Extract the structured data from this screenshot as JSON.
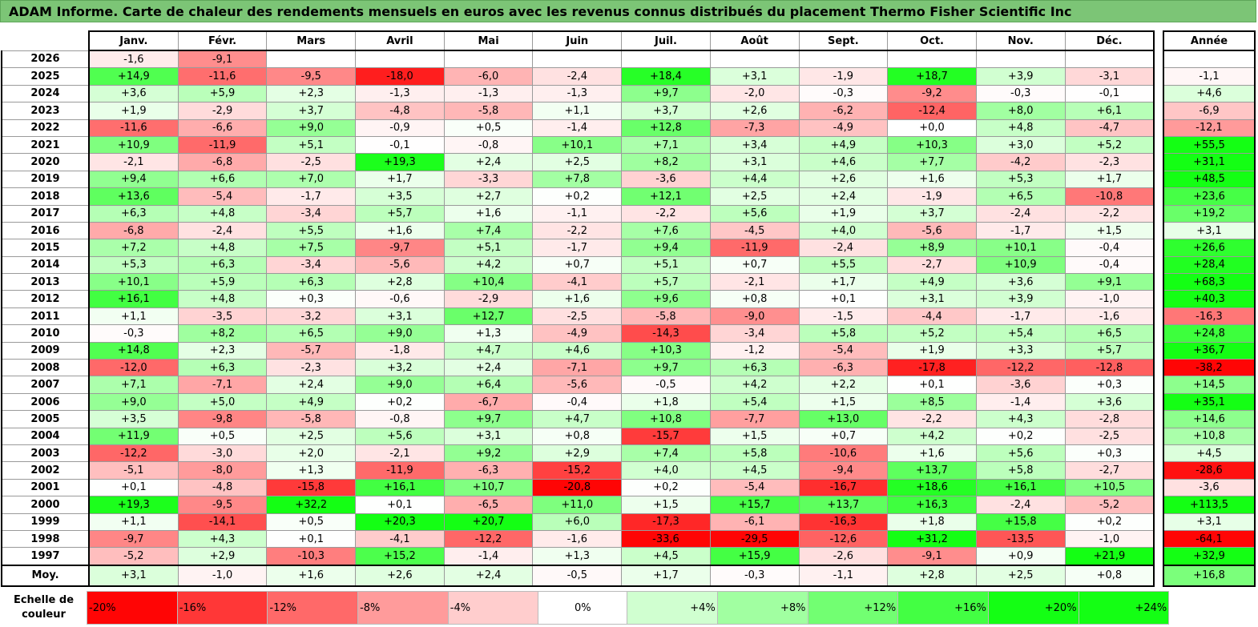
{
  "title": "ADAM Informe. Carte de chaleur des rendements mensuels en euros avec les revenus connus distribués du placement Thermo Fisher Scientific Inc",
  "chart_data": {
    "type": "heatmap",
    "columns": [
      "Janv.",
      "Févr.",
      "Mars",
      "Avril",
      "Mai",
      "Juin",
      "Juil.",
      "Août",
      "Sept.",
      "Oct.",
      "Nov.",
      "Déc."
    ],
    "year_header": "Année",
    "rows": [
      {
        "year": "2026",
        "months": [
          "-1,6",
          "-9,1",
          "",
          "",
          "",
          "",
          "",
          "",
          "",
          "",
          "",
          ""
        ],
        "total": ""
      },
      {
        "year": "2025",
        "months": [
          "+14,9",
          "-11,6",
          "-9,5",
          "-18,0",
          "-6,0",
          "-2,4",
          "+18,4",
          "+3,1",
          "-1,9",
          "+18,7",
          "+3,9",
          "-3,1"
        ],
        "total": "-1,1"
      },
      {
        "year": "2024",
        "months": [
          "+3,6",
          "+5,9",
          "+2,3",
          "-1,3",
          "-1,3",
          "-1,3",
          "+9,7",
          "-2,0",
          "-0,3",
          "-9,2",
          "-0,3",
          "-0,1"
        ],
        "total": "+4,6"
      },
      {
        "year": "2023",
        "months": [
          "+1,9",
          "-2,9",
          "+3,7",
          "-4,8",
          "-5,8",
          "+1,1",
          "+3,7",
          "+2,6",
          "-6,2",
          "-12,4",
          "+8,0",
          "+6,1"
        ],
        "total": "-6,9"
      },
      {
        "year": "2022",
        "months": [
          "-11,6",
          "-6,6",
          "+9,0",
          "-0,9",
          "+0,5",
          "-1,4",
          "+12,8",
          "-7,3",
          "-4,9",
          "+0,0",
          "+4,8",
          "-4,7"
        ],
        "total": "-12,1"
      },
      {
        "year": "2021",
        "months": [
          "+10,9",
          "-11,9",
          "+5,1",
          "-0,1",
          "-0,8",
          "+10,1",
          "+7,1",
          "+3,4",
          "+4,9",
          "+10,3",
          "+3,0",
          "+5,2"
        ],
        "total": "+55,5"
      },
      {
        "year": "2020",
        "months": [
          "-2,1",
          "-6,8",
          "-2,5",
          "+19,3",
          "+2,4",
          "+2,5",
          "+8,2",
          "+3,1",
          "+4,6",
          "+7,7",
          "-4,2",
          "-2,3"
        ],
        "total": "+31,1"
      },
      {
        "year": "2019",
        "months": [
          "+9,4",
          "+6,6",
          "+7,0",
          "+1,7",
          "-3,3",
          "+7,8",
          "-3,6",
          "+4,4",
          "+2,6",
          "+1,6",
          "+5,3",
          "+1,7"
        ],
        "total": "+48,5"
      },
      {
        "year": "2018",
        "months": [
          "+13,6",
          "-5,4",
          "-1,7",
          "+3,5",
          "+2,7",
          "+0,2",
          "+12,1",
          "+2,5",
          "+2,4",
          "-1,9",
          "+6,5",
          "-10,8"
        ],
        "total": "+23,6"
      },
      {
        "year": "2017",
        "months": [
          "+6,3",
          "+4,8",
          "-3,4",
          "+5,7",
          "+1,6",
          "-1,1",
          "-2,2",
          "+5,6",
          "+1,9",
          "+3,7",
          "-2,4",
          "-2,2"
        ],
        "total": "+19,2"
      },
      {
        "year": "2016",
        "months": [
          "-6,8",
          "-2,4",
          "+5,5",
          "+1,6",
          "+7,4",
          "-2,2",
          "+7,6",
          "-4,5",
          "+4,0",
          "-5,6",
          "-1,7",
          "+1,5"
        ],
        "total": "+3,1"
      },
      {
        "year": "2015",
        "months": [
          "+7,2",
          "+4,8",
          "+7,5",
          "-9,7",
          "+5,1",
          "-1,7",
          "+9,4",
          "-11,9",
          "-2,4",
          "+8,9",
          "+10,1",
          "-0,4"
        ],
        "total": "+26,6"
      },
      {
        "year": "2014",
        "months": [
          "+5,3",
          "+6,3",
          "-3,4",
          "-5,6",
          "+4,2",
          "+0,7",
          "+5,1",
          "+0,7",
          "+5,5",
          "-2,7",
          "+10,9",
          "-0,4"
        ],
        "total": "+28,4"
      },
      {
        "year": "2013",
        "months": [
          "+10,1",
          "+5,9",
          "+6,3",
          "+2,8",
          "+10,4",
          "-4,1",
          "+5,7",
          "-2,1",
          "+1,7",
          "+4,9",
          "+3,6",
          "+9,1"
        ],
        "total": "+68,3"
      },
      {
        "year": "2012",
        "months": [
          "+16,1",
          "+4,8",
          "+0,3",
          "-0,6",
          "-2,9",
          "+1,6",
          "+9,6",
          "+0,8",
          "+0,1",
          "+3,1",
          "+3,9",
          "-1,0"
        ],
        "total": "+40,3"
      },
      {
        "year": "2011",
        "months": [
          "+1,1",
          "-3,5",
          "-3,2",
          "+3,1",
          "+12,7",
          "-2,5",
          "-5,8",
          "-9,0",
          "-1,5",
          "-4,4",
          "-1,7",
          "-1,6"
        ],
        "total": "-16,3"
      },
      {
        "year": "2010",
        "months": [
          "-0,3",
          "+8,2",
          "+6,5",
          "+9,0",
          "+1,3",
          "-4,9",
          "-14,3",
          "-3,4",
          "+5,8",
          "+5,2",
          "+5,4",
          "+6,5"
        ],
        "total": "+24,8"
      },
      {
        "year": "2009",
        "months": [
          "+14,8",
          "+2,3",
          "-5,7",
          "-1,8",
          "+4,7",
          "+4,6",
          "+10,3",
          "-1,2",
          "-5,4",
          "+1,9",
          "+3,3",
          "+5,7"
        ],
        "total": "+36,7"
      },
      {
        "year": "2008",
        "months": [
          "-12,0",
          "+6,3",
          "-2,3",
          "+3,2",
          "+2,4",
          "-7,1",
          "+9,7",
          "+6,3",
          "-6,3",
          "-17,8",
          "-12,2",
          "-12,8"
        ],
        "total": "-38,2"
      },
      {
        "year": "2007",
        "months": [
          "+7,1",
          "-7,1",
          "+2,4",
          "+9,0",
          "+6,4",
          "-5,6",
          "-0,5",
          "+4,2",
          "+2,2",
          "+0,1",
          "-3,6",
          "+0,3"
        ],
        "total": "+14,5"
      },
      {
        "year": "2006",
        "months": [
          "+9,0",
          "+5,0",
          "+4,9",
          "+0,2",
          "-6,7",
          "-0,4",
          "+1,8",
          "+5,4",
          "+1,5",
          "+8,5",
          "-1,4",
          "+3,6"
        ],
        "total": "+35,1"
      },
      {
        "year": "2005",
        "months": [
          "+3,5",
          "-9,8",
          "-5,8",
          "-0,8",
          "+9,7",
          "+4,7",
          "+10,8",
          "-7,7",
          "+13,0",
          "-2,2",
          "+4,3",
          "-2,8"
        ],
        "total": "+14,6"
      },
      {
        "year": "2004",
        "months": [
          "+11,9",
          "+0,5",
          "+2,5",
          "+5,6",
          "+3,1",
          "+0,8",
          "-15,7",
          "+1,5",
          "+0,7",
          "+4,2",
          "+0,2",
          "-2,5"
        ],
        "total": "+10,8"
      },
      {
        "year": "2003",
        "months": [
          "-12,2",
          "-3,0",
          "+2,0",
          "-2,1",
          "+9,2",
          "+2,9",
          "+7,4",
          "+5,8",
          "-10,6",
          "+1,6",
          "+5,6",
          "+0,3"
        ],
        "total": "+4,5"
      },
      {
        "year": "2002",
        "months": [
          "-5,1",
          "-8,0",
          "+1,3",
          "-11,9",
          "-6,3",
          "-15,2",
          "+4,0",
          "+4,5",
          "-9,4",
          "+13,7",
          "+5,8",
          "-2,7"
        ],
        "total": "-28,6"
      },
      {
        "year": "2001",
        "months": [
          "+0,1",
          "-4,8",
          "-15,8",
          "+16,1",
          "+10,7",
          "-20,8",
          "+0,2",
          "-5,4",
          "-16,7",
          "+18,6",
          "+16,1",
          "+10,5"
        ],
        "total": "-3,6"
      },
      {
        "year": "2000",
        "months": [
          "+19,3",
          "-9,5",
          "+32,2",
          "+0,1",
          "-6,5",
          "+11,0",
          "+1,5",
          "+15,7",
          "+13,7",
          "+16,3",
          "-2,4",
          "-5,2"
        ],
        "total": "+113,5"
      },
      {
        "year": "1999",
        "months": [
          "+1,1",
          "-14,1",
          "+0,5",
          "+20,3",
          "+20,7",
          "+6,0",
          "-17,3",
          "-6,1",
          "-16,3",
          "+1,8",
          "+15,8",
          "+0,2"
        ],
        "total": "+3,1"
      },
      {
        "year": "1998",
        "months": [
          "-9,7",
          "+4,3",
          "+0,1",
          "-4,1",
          "-12,2",
          "-1,6",
          "-33,6",
          "-29,5",
          "-12,6",
          "+31,2",
          "-13,5",
          "-1,0"
        ],
        "total": "-64,1"
      },
      {
        "year": "1997",
        "months": [
          "-5,2",
          "+2,9",
          "-10,3",
          "+15,2",
          "-1,4",
          "+1,3",
          "+4,5",
          "+15,9",
          "-2,6",
          "-9,1",
          "+0,9",
          "+21,9"
        ],
        "total": "+32,9"
      }
    ],
    "average": {
      "label": "Moy.",
      "months": [
        "+3,1",
        "-1,0",
        "+1,6",
        "+2,6",
        "+2,4",
        "-0,5",
        "+1,7",
        "-0,3",
        "-1,1",
        "+2,8",
        "+2,5",
        "+0,8"
      ],
      "total": "+16,8"
    },
    "legend": {
      "label": "Echelle de couleur",
      "stops": [
        "-20%",
        "-16%",
        "-12%",
        "-8%",
        "-4%",
        "0%",
        "+4%",
        "+8%",
        "+12%",
        "+16%",
        "+20%",
        "+24%"
      ]
    }
  }
}
